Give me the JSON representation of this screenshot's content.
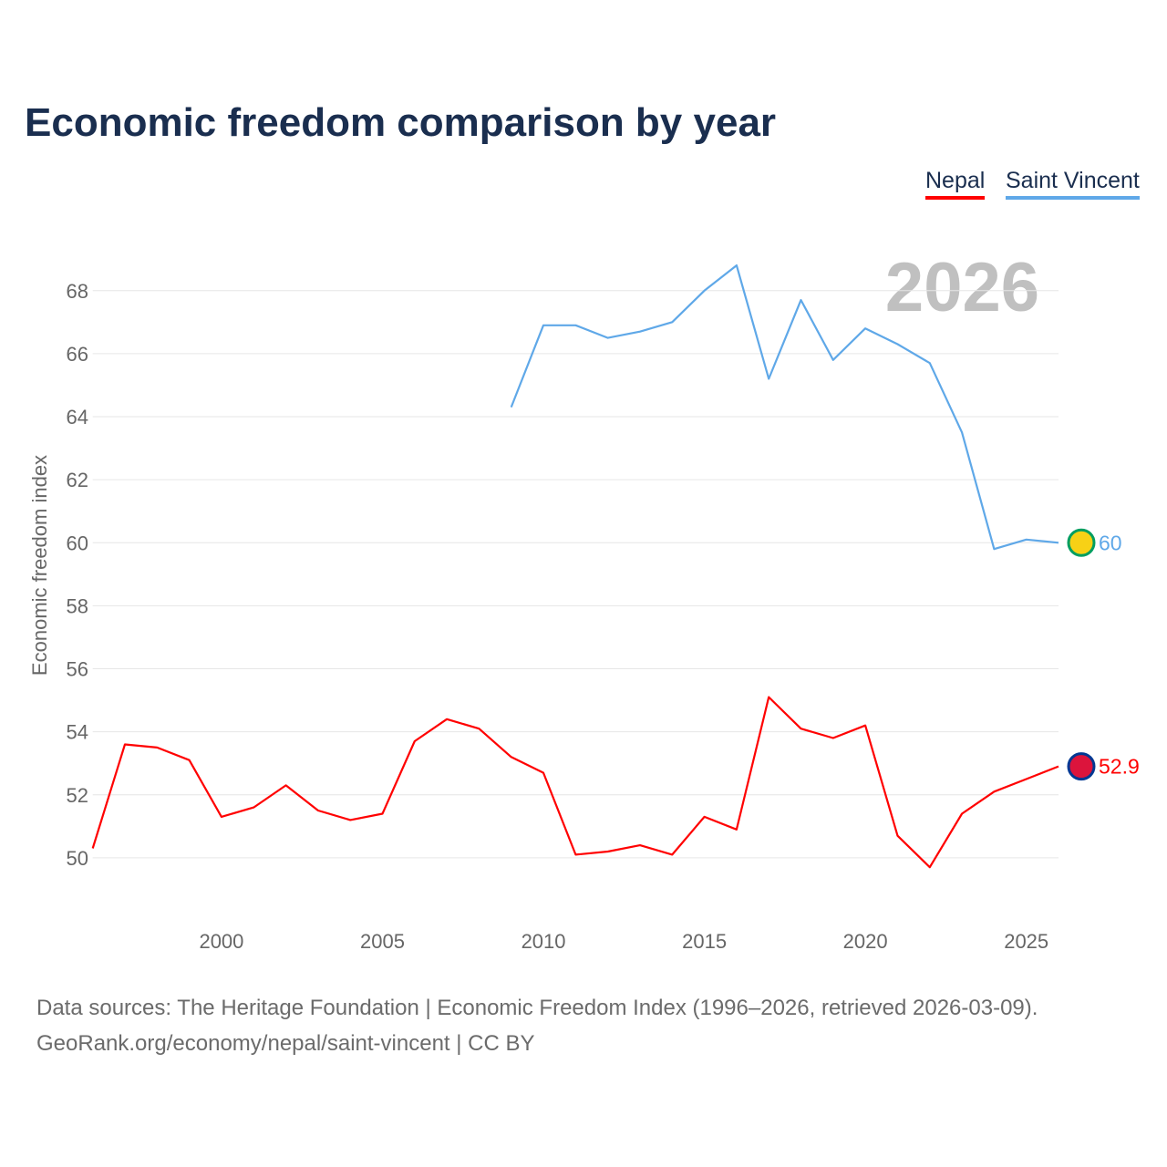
{
  "title": "Economic freedom comparison by year",
  "legend": [
    "Nepal",
    "Saint Vincent"
  ],
  "footer": {
    "line1": "Data sources: The Heritage Foundation | Economic Freedom Index (1996–2026, retrieved 2026-03-09).",
    "line2": "GeoRank.org/economy/nepal/saint-vincent | CC BY"
  },
  "chart_data": {
    "type": "line",
    "title": "Economic freedom comparison by year",
    "xlabel": "",
    "ylabel": "Economic freedom index",
    "year_watermark": "2026",
    "xlim": [
      1996,
      2026
    ],
    "ylim": [
      48,
      69.7
    ],
    "xticks": [
      2000,
      2005,
      2010,
      2015,
      2020,
      2025
    ],
    "yticks": [
      50,
      52,
      54,
      56,
      58,
      60,
      62,
      64,
      66,
      68
    ],
    "grid": true,
    "legend_position": "top-right",
    "series": [
      {
        "name": "Nepal",
        "color": "#ff0000",
        "end_label": "52.9",
        "x": [
          1996,
          1997,
          1998,
          1999,
          2000,
          2001,
          2002,
          2003,
          2004,
          2005,
          2006,
          2007,
          2008,
          2009,
          2010,
          2011,
          2012,
          2013,
          2014,
          2015,
          2016,
          2017,
          2018,
          2019,
          2020,
          2021,
          2022,
          2023,
          2024,
          2025,
          2026
        ],
        "values": [
          50.3,
          53.6,
          53.5,
          53.1,
          51.3,
          51.6,
          52.3,
          51.5,
          51.2,
          51.4,
          53.7,
          54.4,
          54.1,
          53.2,
          52.7,
          50.1,
          50.2,
          50.4,
          50.1,
          51.3,
          50.9,
          55.1,
          54.1,
          53.8,
          54.2,
          50.7,
          49.7,
          51.4,
          52.1,
          52.5,
          52.9
        ]
      },
      {
        "name": "Saint Vincent",
        "color": "#5fa8e8",
        "end_label": "60",
        "x": [
          2009,
          2010,
          2011,
          2012,
          2013,
          2014,
          2015,
          2016,
          2017,
          2018,
          2019,
          2020,
          2021,
          2022,
          2023,
          2024,
          2025,
          2026
        ],
        "values": [
          64.3,
          66.9,
          66.9,
          66.5,
          66.7,
          67.0,
          68.0,
          68.8,
          65.2,
          67.7,
          65.8,
          66.8,
          66.3,
          65.7,
          63.5,
          59.8,
          60.1,
          60.0
        ]
      }
    ]
  }
}
